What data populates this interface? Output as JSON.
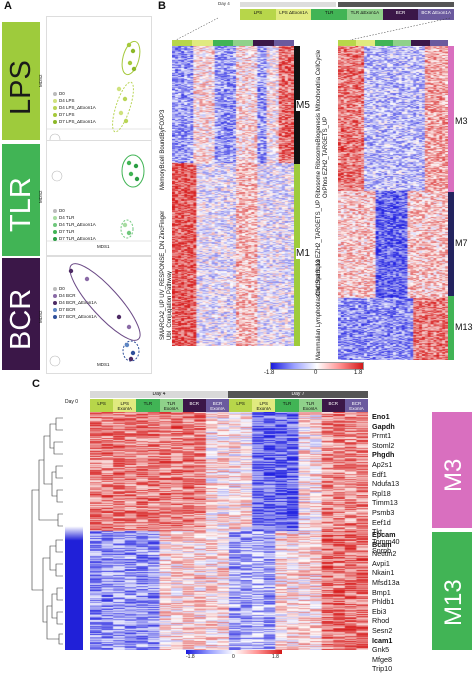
{
  "panels": {
    "A": "A",
    "B": "B",
    "C": "C"
  },
  "panelA": {
    "xaxis": "MDS1",
    "yaxis": "MDS2",
    "conditions": [
      {
        "label": "LPS",
        "color": "#9ecb3c",
        "text_color": "#1a1a1a",
        "legend": [
          "D0",
          "D4 LPS",
          "D4 LPS_ΔExon1A",
          "D7 LPS",
          "D7 LPS_ΔExon1A"
        ],
        "legend_colors": [
          "#bbbbbb",
          "#cfe27d",
          "#b9d557",
          "#a5c93b",
          "#8cb828"
        ]
      },
      {
        "label": "TLR",
        "color": "#41b455",
        "text_color": "#ffffff",
        "legend": [
          "D0",
          "D4 TLR",
          "D4 TLR_ΔExon1A",
          "D7 TLR",
          "D7 TLR_ΔExon1A"
        ],
        "legend_colors": [
          "#bbbbbb",
          "#a8dca2",
          "#6fc77c",
          "#41b455",
          "#2b9e44"
        ]
      },
      {
        "label": "BCR",
        "color": "#3b1748",
        "text_color": "#ffffff",
        "legend": [
          "D0",
          "D4 BCR",
          "D4 BCR_ΔExon1A",
          "D7 BCR",
          "D7 BCR_ΔExon1A"
        ],
        "legend_colors": [
          "#bbbbbb",
          "#8a6aa6",
          "#4d2a64",
          "#5d86c4",
          "#2e4f9a"
        ]
      }
    ]
  },
  "panelB": {
    "day4": "Day 4",
    "day7": "Day 7",
    "conds": [
      "LPS",
      "LPS ΔExon1A",
      "TLR",
      "TLR ΔExon1A",
      "BCR",
      "BCR ΔExon1A"
    ],
    "cond_colors": [
      "#b7d64a",
      "#e0ea7f",
      "#41b455",
      "#8fd18a",
      "#3b1748",
      "#6b5a9e"
    ],
    "left_modules": [
      {
        "label": "M5",
        "color": "#111111",
        "desc": "MemoryBcell BoundByFOXP3"
      },
      {
        "label": "M1",
        "color": "#9ecb3c",
        "desc": "SMARCA2_UP UV_RESPONSE_DN ZincFinger Ubl_Conjugation Pathway"
      }
    ],
    "right_modules": [
      {
        "label": "M3",
        "color": "#d96fbf",
        "desc": "Ribosome RibosomeBiogenesis Mitochondria CellCycle OxPhos EZH2_TARGETS_UP"
      },
      {
        "label": "M7",
        "color": "#23235e",
        "desc": "Chr19p13q13 EZH2_TARGETS_UP"
      },
      {
        "label": "M13",
        "color": "#41b455",
        "desc": "Mammalian Lymphoblastoid StemLike"
      }
    ],
    "scale": [
      "-1.8",
      "0",
      "1.8"
    ]
  },
  "panelC": {
    "day0": "Day 0",
    "day4": "Day 4",
    "day7": "Day 7",
    "conds": [
      "LPS",
      "LPS ExonIA",
      "TLR",
      "TLR ExonIA",
      "BCR",
      "BCR ExonIA"
    ],
    "m3_label": "M3",
    "m13_label": "M13",
    "m3_genes": [
      {
        "name": "Eno1",
        "bold": true
      },
      {
        "name": "Gapdh",
        "bold": true
      },
      {
        "name": "Prmt1",
        "bold": false
      },
      {
        "name": "Stoml2",
        "bold": false
      },
      {
        "name": "Phgdh",
        "bold": true
      },
      {
        "name": "Ap2s1",
        "bold": false
      },
      {
        "name": "Edf1",
        "bold": false
      },
      {
        "name": "Ndufa13",
        "bold": false
      },
      {
        "name": "Rpl18",
        "bold": false
      },
      {
        "name": "Timm13",
        "bold": false
      },
      {
        "name": "Psmb3",
        "bold": false
      },
      {
        "name": "Eef1d",
        "bold": false
      },
      {
        "name": "Tkt",
        "bold": false
      },
      {
        "name": "Tomm40",
        "bold": false
      },
      {
        "name": "Snrpb",
        "bold": false
      }
    ],
    "m13_genes": [
      {
        "name": "Epcam",
        "bold": true
      },
      {
        "name": "Bcam",
        "bold": true
      },
      {
        "name": "Nectin2",
        "bold": false
      },
      {
        "name": "Avpi1",
        "bold": false
      },
      {
        "name": "Nkain1",
        "bold": false
      },
      {
        "name": "Mfsd13a",
        "bold": false
      },
      {
        "name": "Bmp1",
        "bold": false
      },
      {
        "name": "Phldb1",
        "bold": false
      },
      {
        "name": "Ebi3",
        "bold": false
      },
      {
        "name": "Rhod",
        "bold": false
      },
      {
        "name": "Sesn2",
        "bold": false
      },
      {
        "name": "Icam1",
        "bold": true
      },
      {
        "name": "Gnk5",
        "bold": false
      },
      {
        "name": "Mfge8",
        "bold": false
      },
      {
        "name": "Trip10",
        "bold": false
      }
    ],
    "scale": [
      "-1.8",
      "0",
      "1.8"
    ]
  }
}
